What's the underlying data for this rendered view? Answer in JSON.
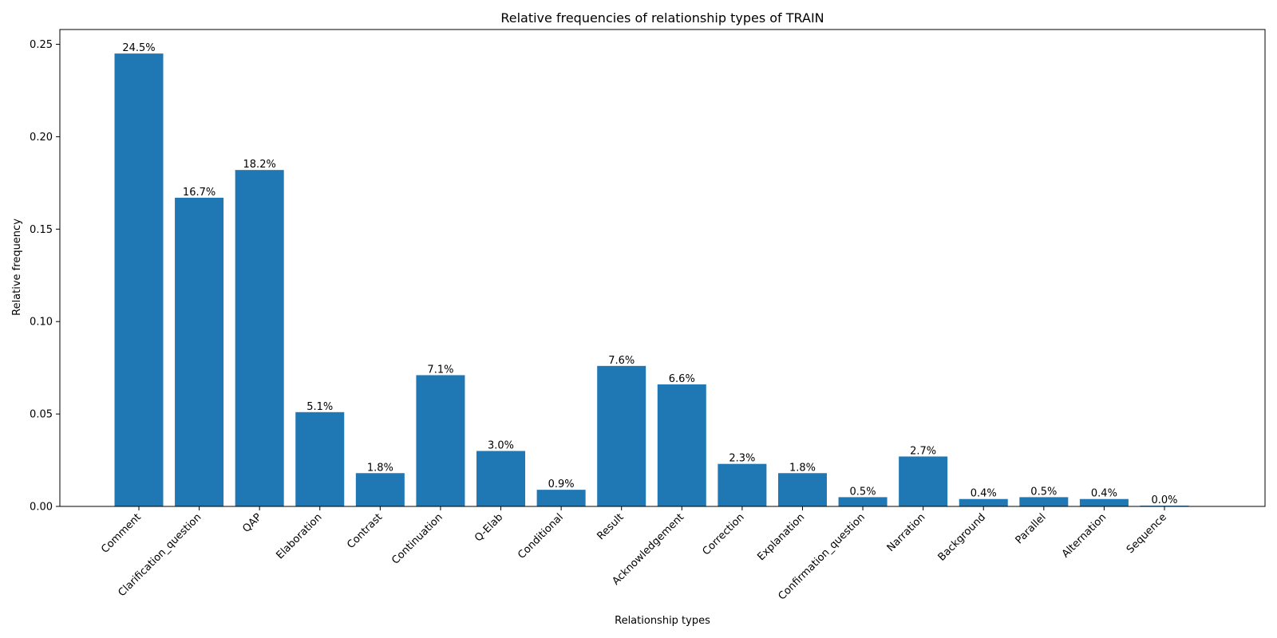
{
  "chart_data": {
    "type": "bar",
    "title": "Relative frequencies of relationship types of TRAIN",
    "xlabel": "Relationship types",
    "ylabel": "Relative frequency",
    "ylim": [
      0,
      0.258
    ],
    "yticks": [
      "0.00",
      "0.05",
      "0.10",
      "0.15",
      "0.20",
      "0.25"
    ],
    "ytick_values": [
      0,
      0.05,
      0.1,
      0.15,
      0.2,
      0.25
    ],
    "categories": [
      "Comment",
      "Clarification_question",
      "QAP",
      "Elaboration",
      "Contrast",
      "Continuation",
      "Q-Elab",
      "Conditional",
      "Result",
      "Acknowledgement",
      "Correction",
      "Explanation",
      "Confirmation_question",
      "Narration",
      "Background",
      "Parallel",
      "Alternation",
      "Sequence"
    ],
    "values": [
      0.245,
      0.167,
      0.182,
      0.051,
      0.018,
      0.071,
      0.03,
      0.009,
      0.076,
      0.066,
      0.023,
      0.018,
      0.005,
      0.027,
      0.004,
      0.005,
      0.004,
      0.0004
    ],
    "data_labels": [
      "24.5%",
      "16.7%",
      "18.2%",
      "5.1%",
      "1.8%",
      "7.1%",
      "3.0%",
      "0.9%",
      "7.6%",
      "6.6%",
      "2.3%",
      "1.8%",
      "0.5%",
      "2.7%",
      "0.4%",
      "0.5%",
      "0.4%",
      "0.0%"
    ],
    "bar_color": "#1f77b4",
    "grid": false,
    "legend": false
  }
}
